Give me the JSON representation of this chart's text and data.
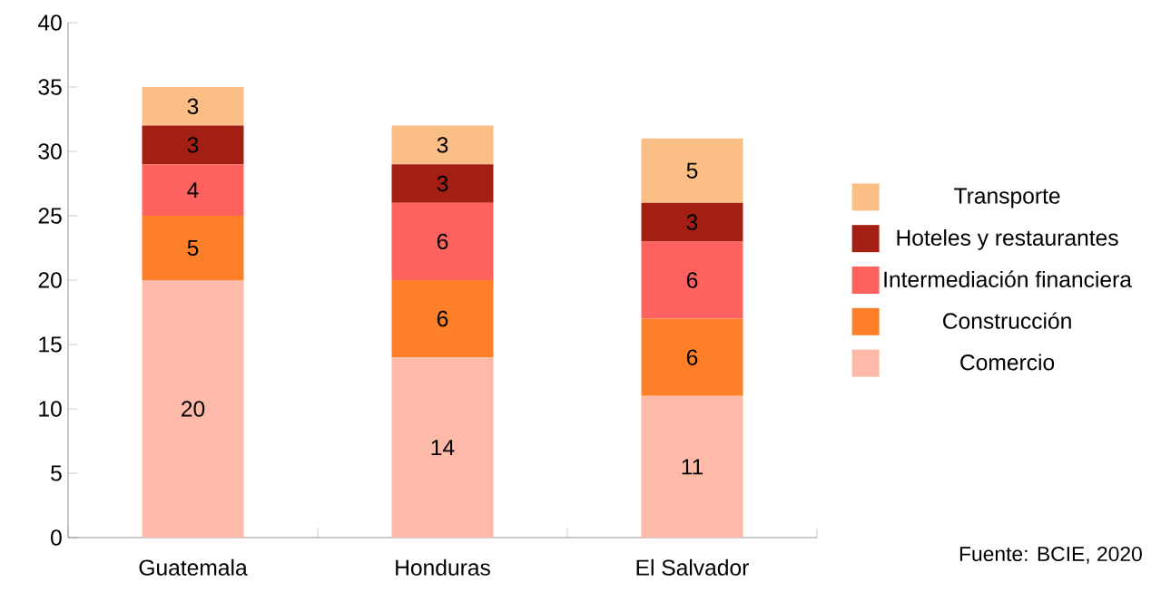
{
  "chart_data": {
    "type": "bar",
    "stacked": true,
    "categories": [
      "Guatemala",
      "Honduras",
      "El Salvador"
    ],
    "series": [
      {
        "name": "Comercio",
        "color": "#fdbaa8",
        "values": [
          20,
          14,
          11
        ]
      },
      {
        "name": "Construcción",
        "color": "#fd8028",
        "values": [
          5,
          6,
          6
        ]
      },
      {
        "name": "Intermediación financiera",
        "color": "#fd625e",
        "values": [
          4,
          6,
          6
        ]
      },
      {
        "name": "Hoteles y restaurantes",
        "color": "#a31f14",
        "values": [
          3,
          3,
          3
        ]
      },
      {
        "name": "Transporte",
        "color": "#fbbf85",
        "values": [
          3,
          3,
          5
        ]
      }
    ],
    "ylim": [
      0,
      40
    ],
    "yticks": [
      0,
      5,
      10,
      15,
      20,
      25,
      30,
      35,
      40
    ],
    "grid": false,
    "legend": "right",
    "data_labels": true,
    "annotations": [
      "Fuente: BCIE, 2020"
    ]
  }
}
